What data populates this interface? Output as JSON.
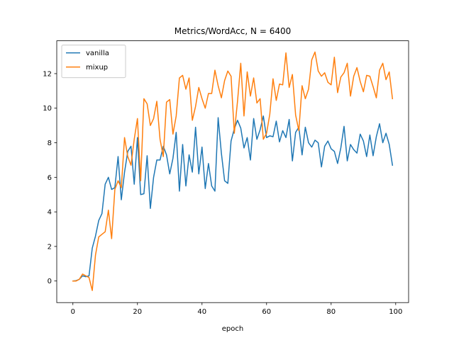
{
  "chart_data": {
    "type": "line",
    "title": "Metrics/WordAcc, N = 6400",
    "xlabel": "epoch",
    "ylabel": "",
    "xlim": [
      -5,
      104
    ],
    "ylim": [
      -1.25,
      13.9
    ],
    "xticks": [
      0,
      20,
      40,
      60,
      80,
      100
    ],
    "yticks": [
      0,
      2,
      4,
      6,
      8,
      10,
      12
    ],
    "grid": false,
    "legend_position": "upper-left",
    "series": [
      {
        "name": "vanilla",
        "color": "#1f77b4",
        "x": [
          0,
          1,
          2,
          3,
          4,
          5,
          6,
          7,
          8,
          9,
          10,
          11,
          12,
          13,
          14,
          15,
          16,
          17,
          18,
          19,
          20,
          21,
          22,
          23,
          24,
          25,
          26,
          27,
          28,
          29,
          30,
          31,
          32,
          33,
          34,
          35,
          36,
          37,
          38,
          39,
          40,
          41,
          42,
          43,
          44,
          45,
          46,
          47,
          48,
          49,
          50,
          51,
          52,
          53,
          54,
          55,
          56,
          57,
          58,
          59,
          60,
          61,
          62,
          63,
          64,
          65,
          66,
          67,
          68,
          69,
          70,
          71,
          72,
          73,
          74,
          75,
          76,
          77,
          78,
          79,
          80,
          81,
          82,
          83,
          84,
          85,
          86,
          87,
          88,
          89,
          90,
          91,
          92,
          93,
          94,
          95,
          96,
          97,
          98,
          99
        ],
        "values": [
          0.0,
          0.02,
          0.1,
          0.3,
          0.25,
          0.3,
          1.9,
          2.6,
          3.5,
          3.9,
          5.6,
          6.0,
          5.3,
          5.4,
          7.2,
          4.7,
          6.3,
          7.5,
          7.8,
          5.6,
          8.3,
          5.0,
          5.05,
          7.25,
          4.2,
          6.0,
          7.0,
          7.0,
          7.8,
          7.3,
          6.2,
          7.1,
          8.6,
          5.2,
          7.9,
          5.5,
          7.3,
          6.3,
          8.9,
          6.2,
          7.75,
          5.35,
          6.8,
          5.5,
          5.2,
          9.45,
          7.4,
          5.8,
          5.65,
          8.1,
          8.8,
          9.3,
          8.85,
          7.7,
          8.3,
          7.0,
          9.4,
          8.2,
          8.75,
          9.55,
          8.3,
          8.4,
          8.35,
          9.25,
          8.05,
          8.7,
          8.3,
          9.35,
          6.95,
          8.6,
          8.9,
          7.3,
          8.9,
          8.0,
          7.75,
          8.15,
          8.0,
          6.6,
          7.8,
          8.1,
          7.65,
          7.5,
          6.8,
          7.7,
          8.95,
          6.95,
          7.9,
          7.6,
          7.4,
          8.5,
          8.1,
          7.2,
          8.45,
          7.25,
          8.35,
          9.1,
          8.0,
          8.55,
          7.9,
          6.7
        ]
      },
      {
        "name": "mixup",
        "color": "#ff7f0e",
        "x": [
          0,
          1,
          2,
          3,
          4,
          5,
          6,
          7,
          8,
          9,
          10,
          11,
          12,
          13,
          14,
          15,
          16,
          17,
          18,
          19,
          20,
          21,
          22,
          23,
          24,
          25,
          26,
          27,
          28,
          29,
          30,
          31,
          32,
          33,
          34,
          35,
          36,
          37,
          38,
          39,
          40,
          41,
          42,
          43,
          44,
          45,
          46,
          47,
          48,
          49,
          50,
          51,
          52,
          53,
          54,
          55,
          56,
          57,
          58,
          59,
          60,
          61,
          62,
          63,
          64,
          65,
          66,
          67,
          68,
          69,
          70,
          71,
          72,
          73,
          74,
          75,
          76,
          77,
          78,
          79,
          80,
          81,
          82,
          83,
          84,
          85,
          86,
          87,
          88,
          89,
          90,
          91,
          92,
          93,
          94,
          95,
          96,
          97,
          98,
          99
        ],
        "values": [
          0.0,
          0.0,
          0.1,
          0.4,
          0.3,
          0.2,
          -0.55,
          1.5,
          2.55,
          2.7,
          2.85,
          4.1,
          2.45,
          5.3,
          5.8,
          5.4,
          8.3,
          7.2,
          6.7,
          8.2,
          9.4,
          5.8,
          10.55,
          10.25,
          9.0,
          9.4,
          10.4,
          8.2,
          7.2,
          10.35,
          10.5,
          8.5,
          9.55,
          11.75,
          11.9,
          11.1,
          11.75,
          9.3,
          10.1,
          11.2,
          10.55,
          10.0,
          10.85,
          10.85,
          12.2,
          11.3,
          10.6,
          11.6,
          12.15,
          11.85,
          8.55,
          10.4,
          12.6,
          9.55,
          12.1,
          10.7,
          11.75,
          10.3,
          10.55,
          8.2,
          8.55,
          9.65,
          11.7,
          10.45,
          11.4,
          11.35,
          13.2,
          11.2,
          11.95,
          9.6,
          8.7,
          11.3,
          10.55,
          11.1,
          12.8,
          13.25,
          12.15,
          11.85,
          12.05,
          11.5,
          11.35,
          12.95,
          10.9,
          11.8,
          12.05,
          12.6,
          10.7,
          11.85,
          12.35,
          11.55,
          10.95,
          11.9,
          11.85,
          11.25,
          10.6,
          12.2,
          12.6,
          11.65,
          12.1,
          10.55
        ]
      }
    ]
  }
}
